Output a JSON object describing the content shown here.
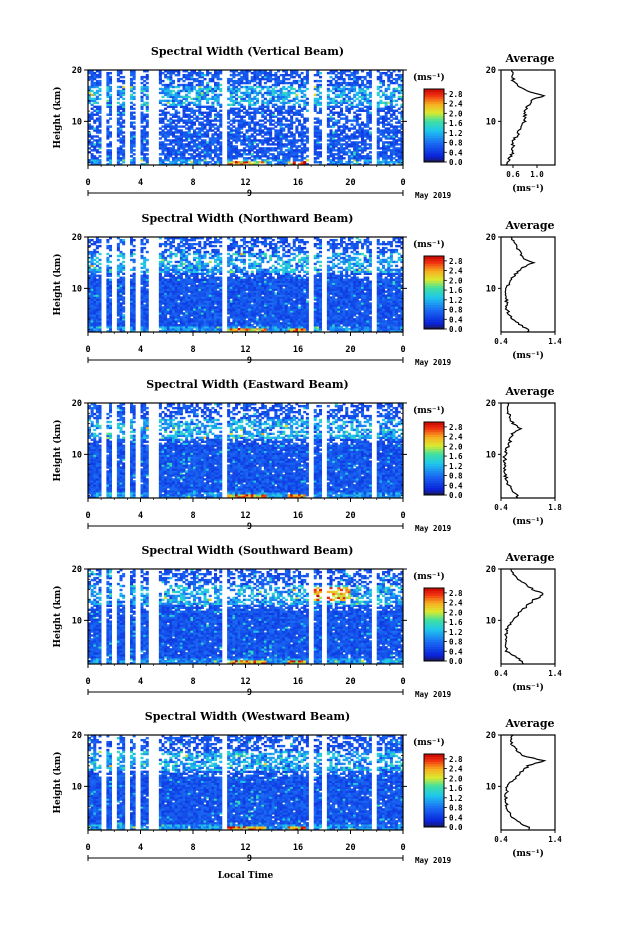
{
  "common": {
    "ylabel": "Height (km)",
    "x_ticks": [
      "0",
      "4",
      "8",
      "12",
      "16",
      "20",
      "0"
    ],
    "y_ticks": [
      "20",
      "10"
    ],
    "date_tick": "9",
    "date_label": "May 2019",
    "unit_label": "(ms⁻¹)",
    "colorbar_ticks": [
      "2.8",
      "2.4",
      "2.0",
      "1.6",
      "1.2",
      "0.8",
      "0.4",
      "0.0"
    ],
    "avg_title": "Average",
    "avg_xlabel": "(ms⁻¹)",
    "xlabel": "Local Time",
    "colors": {
      "low": "#0a3cf0",
      "mid": "#1fc4e6",
      "high": "#f0e020",
      "peak": "#e01010",
      "bg": "#ffffff"
    }
  },
  "chart_data": [
    {
      "type": "heatmap",
      "title": "Spectral Width (Vertical Beam)",
      "x_range_hours": [
        0,
        24
      ],
      "y_range_km": [
        1.5,
        20
      ],
      "colorbar_range": [
        0.0,
        3.0
      ],
      "data_gaps_hours": [
        [
          0.9,
          1.3
        ],
        [
          1.8,
          2.2
        ],
        [
          2.7,
          3.1
        ],
        [
          3.6,
          4.0
        ],
        [
          4.5,
          5.3
        ],
        [
          10.2,
          10.6
        ],
        [
          16.8,
          17.2
        ],
        [
          17.7,
          18.1
        ],
        [
          21.6,
          22.0
        ]
      ],
      "average_profile": {
        "xlim": [
          0.4,
          1.3
        ],
        "x_ticks": [
          "0.6",
          "1.0"
        ],
        "height_km": [
          2,
          4,
          6,
          8,
          10,
          12,
          14,
          15,
          16,
          18,
          20
        ],
        "width_ms": [
          0.5,
          0.6,
          0.6,
          0.7,
          0.8,
          0.8,
          0.9,
          1.1,
          0.8,
          0.6,
          0.6
        ]
      }
    },
    {
      "type": "heatmap",
      "title": "Spectral Width (Northward Beam)",
      "x_range_hours": [
        0,
        24
      ],
      "y_range_km": [
        1.5,
        20
      ],
      "colorbar_range": [
        0.0,
        3.0
      ],
      "data_gaps_hours": [
        [
          0.9,
          1.3
        ],
        [
          1.8,
          2.2
        ],
        [
          2.7,
          3.1
        ],
        [
          3.6,
          4.0
        ],
        [
          4.5,
          5.3
        ],
        [
          10.2,
          10.6
        ],
        [
          16.8,
          17.2
        ],
        [
          17.7,
          18.1
        ],
        [
          21.6,
          22.0
        ]
      ],
      "average_profile": {
        "xlim": [
          0.4,
          1.4
        ],
        "x_ticks": [
          "0.4",
          "1.4"
        ],
        "height_km": [
          2,
          4,
          6,
          8,
          10,
          12,
          14,
          15,
          16,
          18,
          20
        ],
        "width_ms": [
          0.9,
          0.6,
          0.5,
          0.5,
          0.5,
          0.6,
          0.8,
          1.0,
          0.8,
          0.7,
          0.6
        ]
      }
    },
    {
      "type": "heatmap",
      "title": "Spectral Width (Eastward Beam)",
      "x_range_hours": [
        0,
        24
      ],
      "y_range_km": [
        1.5,
        20
      ],
      "colorbar_range": [
        0.0,
        3.0
      ],
      "data_gaps_hours": [
        [
          0.9,
          1.3
        ],
        [
          1.8,
          2.2
        ],
        [
          2.7,
          3.1
        ],
        [
          3.6,
          4.0
        ],
        [
          4.5,
          5.3
        ],
        [
          10.2,
          10.6
        ],
        [
          16.8,
          17.2
        ],
        [
          17.7,
          18.1
        ],
        [
          21.6,
          22.0
        ]
      ],
      "average_profile": {
        "xlim": [
          0.4,
          1.8
        ],
        "x_ticks": [
          "0.4",
          "1.8"
        ],
        "height_km": [
          2,
          4,
          6,
          8,
          10,
          12,
          14,
          15,
          16,
          18,
          20
        ],
        "width_ms": [
          0.8,
          0.6,
          0.5,
          0.5,
          0.5,
          0.6,
          0.7,
          0.9,
          0.7,
          0.6,
          0.6
        ]
      }
    },
    {
      "type": "heatmap",
      "title": "Spectral Width (Southward Beam)",
      "x_range_hours": [
        0,
        24
      ],
      "y_range_km": [
        1.5,
        20
      ],
      "colorbar_range": [
        0.0,
        3.0
      ],
      "data_gaps_hours": [
        [
          0.9,
          1.3
        ],
        [
          1.8,
          2.2
        ],
        [
          2.7,
          3.1
        ],
        [
          3.6,
          4.0
        ],
        [
          4.5,
          5.3
        ],
        [
          10.2,
          10.6
        ],
        [
          16.8,
          17.2
        ],
        [
          17.7,
          18.1
        ],
        [
          21.6,
          22.0
        ]
      ],
      "average_profile": {
        "xlim": [
          0.4,
          1.4
        ],
        "x_ticks": [
          "0.4",
          "1.4"
        ],
        "height_km": [
          2,
          4,
          6,
          8,
          10,
          12,
          14,
          15,
          16,
          18,
          20
        ],
        "width_ms": [
          0.8,
          0.5,
          0.5,
          0.5,
          0.6,
          0.8,
          1.0,
          1.2,
          1.0,
          0.7,
          0.6
        ]
      }
    },
    {
      "type": "heatmap",
      "title": "Spectral Width (Westward Beam)",
      "x_range_hours": [
        0,
        24
      ],
      "y_range_km": [
        1.5,
        20
      ],
      "colorbar_range": [
        0.0,
        3.0
      ],
      "data_gaps_hours": [
        [
          0.9,
          1.3
        ],
        [
          1.8,
          2.2
        ],
        [
          2.7,
          3.1
        ],
        [
          3.6,
          4.0
        ],
        [
          4.5,
          5.3
        ],
        [
          10.2,
          10.6
        ],
        [
          16.8,
          17.2
        ],
        [
          17.7,
          18.1
        ],
        [
          21.6,
          22.0
        ]
      ],
      "average_profile": {
        "xlim": [
          0.4,
          1.4
        ],
        "x_ticks": [
          "0.4",
          "1.4"
        ],
        "height_km": [
          2,
          4,
          6,
          8,
          10,
          12,
          14,
          15,
          16,
          18,
          20
        ],
        "width_ms": [
          0.9,
          0.6,
          0.5,
          0.5,
          0.5,
          0.7,
          0.9,
          1.2,
          0.8,
          0.6,
          0.6
        ]
      }
    }
  ]
}
